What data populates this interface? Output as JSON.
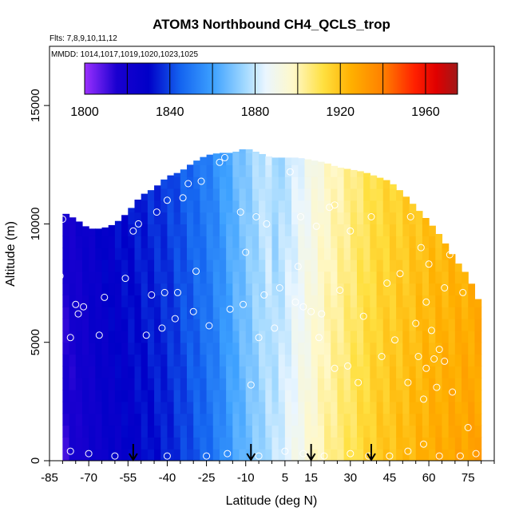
{
  "chart_data": {
    "type": "heatmap",
    "title": "ATOM3 Northbound CH4_QCLS_trop",
    "flights_label": "Flts: 7,8,9,10,11,12",
    "dates_label": "MMDD: 1014,1017,1019,1020,1023,1025",
    "xlabel": "Latitude (deg N)",
    "ylabel": "Altitude (m)",
    "xlim": [
      -85,
      85
    ],
    "ylim": [
      0,
      17500
    ],
    "x_ticks": [
      -85,
      -70,
      -55,
      -40,
      -25,
      -10,
      5,
      15,
      30,
      45,
      60,
      75
    ],
    "x_tick_labels": [
      "-85",
      "-70",
      "-55",
      "-40",
      "-25",
      "-10",
      "5",
      "15",
      "30",
      "45",
      "60",
      "75"
    ],
    "y_ticks": [
      0,
      5000,
      10000,
      15000
    ],
    "y_tick_labels": [
      "0",
      "5000",
      "10000",
      "15000"
    ],
    "colorbar": {
      "range": [
        1800,
        1975
      ],
      "ticks": [
        1800,
        1840,
        1880,
        1920,
        1960
      ],
      "tick_labels": [
        "1800",
        "1840",
        "1880",
        "1920",
        "1960"
      ],
      "color_stops": [
        {
          "value": 1800,
          "color": "#9b30ff"
        },
        {
          "value": 1815,
          "color": "#1a00d0"
        },
        {
          "value": 1830,
          "color": "#0000c8"
        },
        {
          "value": 1845,
          "color": "#1464f0"
        },
        {
          "value": 1860,
          "color": "#3ca0ff"
        },
        {
          "value": 1875,
          "color": "#a0d8ff"
        },
        {
          "value": 1885,
          "color": "#eaf6ff"
        },
        {
          "value": 1898,
          "color": "#fff8c8"
        },
        {
          "value": 1912,
          "color": "#ffe040"
        },
        {
          "value": 1925,
          "color": "#ffb000"
        },
        {
          "value": 1940,
          "color": "#ff8000"
        },
        {
          "value": 1955,
          "color": "#ff2000"
        },
        {
          "value": 1965,
          "color": "#e00000"
        },
        {
          "value": 1975,
          "color": "#a01818"
        }
      ]
    },
    "profile": {
      "latitudes": [
        -80,
        -75,
        -70,
        -65,
        -60,
        -55,
        -50,
        -45,
        -40,
        -35,
        -30,
        -25,
        -20,
        -15,
        -10,
        -5,
        0,
        5,
        10,
        15,
        20,
        25,
        30,
        35,
        40,
        45,
        50,
        55,
        60,
        65,
        70,
        75,
        80
      ],
      "ch4_ppb": [
        1812,
        1816,
        1820,
        1824,
        1826,
        1828,
        1830,
        1832,
        1834,
        1838,
        1842,
        1846,
        1852,
        1860,
        1866,
        1872,
        1878,
        1884,
        1890,
        1896,
        1902,
        1906,
        1910,
        1914,
        1918,
        1920,
        1922,
        1924,
        1926,
        1927,
        1928,
        1929,
        1930
      ],
      "top_altitude_m": [
        10500,
        10200,
        9800,
        9800,
        10000,
        10500,
        11200,
        11500,
        12000,
        12200,
        12600,
        12900,
        13000,
        13000,
        13200,
        13000,
        12800,
        12800,
        12800,
        12700,
        12600,
        12400,
        12300,
        12200,
        12000,
        11800,
        11300,
        10700,
        10100,
        9400,
        8500,
        7800,
        6500
      ]
    },
    "arrow_latitudes": [
      -53,
      -8,
      15,
      38
    ],
    "points": [
      [
        -81,
        7800
      ],
      [
        -80,
        10200
      ],
      [
        -77,
        5200
      ],
      [
        -75,
        6600
      ],
      [
        -74,
        6200
      ],
      [
        -72,
        6500
      ],
      [
        -66,
        5300
      ],
      [
        -64,
        6900
      ],
      [
        -56,
        7700
      ],
      [
        -53,
        9700
      ],
      [
        -51,
        10000
      ],
      [
        -48,
        5300
      ],
      [
        -46,
        7000
      ],
      [
        -44,
        10500
      ],
      [
        -42,
        5600
      ],
      [
        -41,
        7100
      ],
      [
        -40,
        11000
      ],
      [
        -37,
        6000
      ],
      [
        -36,
        7100
      ],
      [
        -34,
        11100
      ],
      [
        -32,
        11700
      ],
      [
        -30,
        6300
      ],
      [
        -29,
        8000
      ],
      [
        -27,
        11800
      ],
      [
        -24,
        5700
      ],
      [
        -20,
        12600
      ],
      [
        -18,
        12800
      ],
      [
        -16,
        6400
      ],
      [
        -12,
        10500
      ],
      [
        -11,
        6600
      ],
      [
        -10,
        8800
      ],
      [
        -8,
        3200
      ],
      [
        -6,
        10300
      ],
      [
        -5,
        5200
      ],
      [
        -3,
        7000
      ],
      [
        -2,
        10000
      ],
      [
        1,
        5600
      ],
      [
        3,
        7300
      ],
      [
        7,
        12200
      ],
      [
        9,
        6700
      ],
      [
        10,
        8200
      ],
      [
        11,
        10300
      ],
      [
        12,
        6500
      ],
      [
        13,
        12900
      ],
      [
        15,
        6300
      ],
      [
        17,
        9900
      ],
      [
        18,
        5200
      ],
      [
        19,
        6200
      ],
      [
        22,
        10700
      ],
      [
        24,
        10800
      ],
      [
        24,
        3900
      ],
      [
        26,
        7200
      ],
      [
        29,
        4000
      ],
      [
        30,
        9700
      ],
      [
        33,
        3300
      ],
      [
        35,
        6100
      ],
      [
        38,
        10300
      ],
      [
        40,
        12200
      ],
      [
        42,
        4400
      ],
      [
        44,
        7500
      ],
      [
        47,
        5100
      ],
      [
        49,
        7900
      ],
      [
        50,
        12000
      ],
      [
        52,
        3300
      ],
      [
        53,
        10300
      ],
      [
        55,
        5800
      ],
      [
        56,
        4400
      ],
      [
        57,
        9000
      ],
      [
        58,
        2600
      ],
      [
        59,
        6700
      ],
      [
        59,
        3900
      ],
      [
        60,
        8300
      ],
      [
        61,
        5500
      ],
      [
        62,
        4300
      ],
      [
        63,
        3100
      ],
      [
        64,
        4700
      ],
      [
        66,
        4200
      ],
      [
        66,
        7300
      ],
      [
        68,
        8700
      ],
      [
        69,
        2900
      ],
      [
        73,
        7100
      ],
      [
        75,
        1400
      ],
      [
        77,
        9000
      ],
      [
        -77,
        400
      ],
      [
        -70,
        300
      ],
      [
        -60,
        200
      ],
      [
        -40,
        200
      ],
      [
        -25,
        200
      ],
      [
        -17,
        300
      ],
      [
        -5,
        200
      ],
      [
        5,
        400
      ],
      [
        12,
        300
      ],
      [
        20,
        200
      ],
      [
        30,
        300
      ],
      [
        37,
        200
      ],
      [
        45,
        200
      ],
      [
        52,
        400
      ],
      [
        58,
        700
      ],
      [
        64,
        200
      ],
      [
        72,
        200
      ],
      [
        78,
        300
      ]
    ]
  }
}
